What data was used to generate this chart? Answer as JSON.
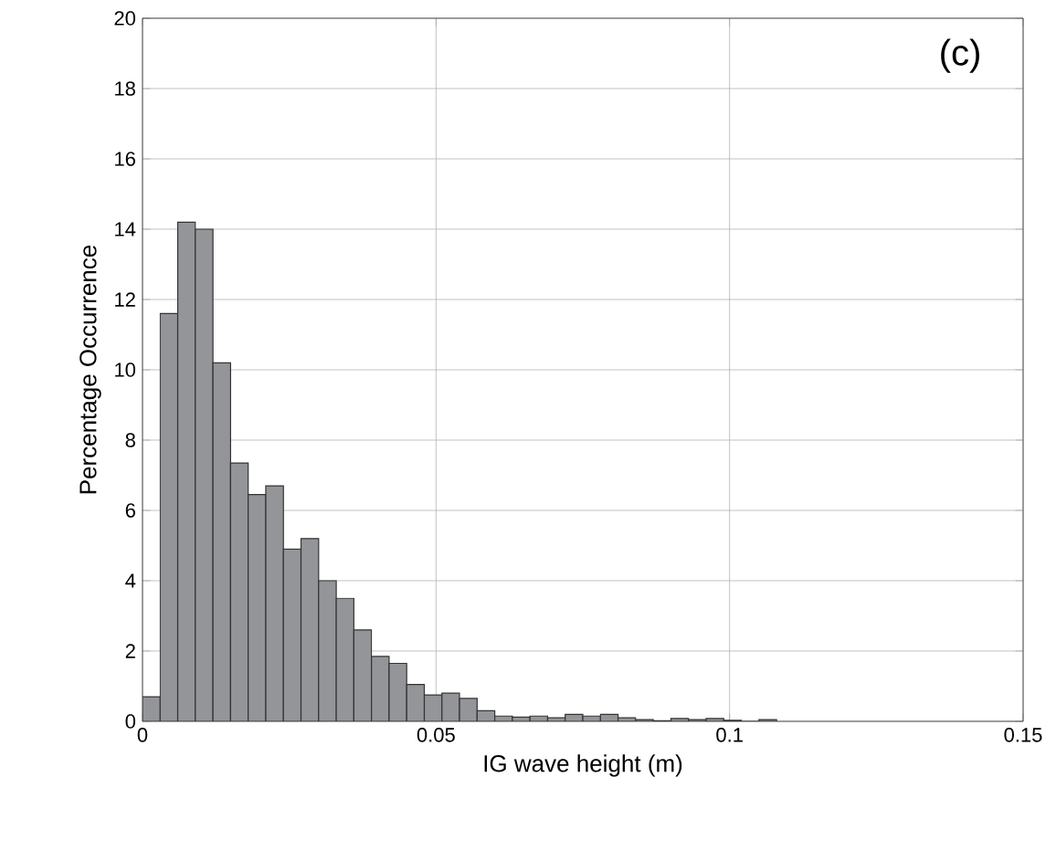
{
  "chart_data": {
    "type": "histogram",
    "xlabel": "IG wave height (m)",
    "ylabel": "Percentage Occurrence",
    "annotations": [
      "(c)"
    ],
    "bins": [
      0,
      0.003,
      0.006,
      0.009,
      0.012,
      0.015,
      0.018,
      0.021,
      0.024,
      0.027,
      0.03,
      0.033,
      0.036,
      0.039,
      0.042,
      0.045,
      0.048,
      0.051,
      0.054,
      0.057,
      0.06,
      0.063,
      0.066,
      0.069,
      0.072,
      0.075,
      0.078,
      0.081,
      0.084,
      0.087,
      0.09,
      0.093,
      0.096,
      0.099,
      0.102,
      0.105,
      0.108
    ],
    "values": [
      0.7,
      11.6,
      14.2,
      14.0,
      10.2,
      7.35,
      6.45,
      6.7,
      4.9,
      5.2,
      4.0,
      3.5,
      2.6,
      1.85,
      1.65,
      1.05,
      0.75,
      0.8,
      0.65,
      0.3,
      0.15,
      0.12,
      0.15,
      0.1,
      0.2,
      0.15,
      0.2,
      0.1,
      0.05,
      0.02,
      0.08,
      0.05,
      0.08,
      0.03,
      0,
      0.05
    ],
    "color": "#939598",
    "xlim": [
      0,
      0.15
    ],
    "xticks": [
      0,
      0.05,
      0.1,
      0.15
    ],
    "ylim": [
      0,
      20
    ],
    "yticks": [
      0,
      2,
      4,
      6,
      8,
      10,
      12,
      14,
      16,
      18,
      20
    ],
    "grid": true
  }
}
